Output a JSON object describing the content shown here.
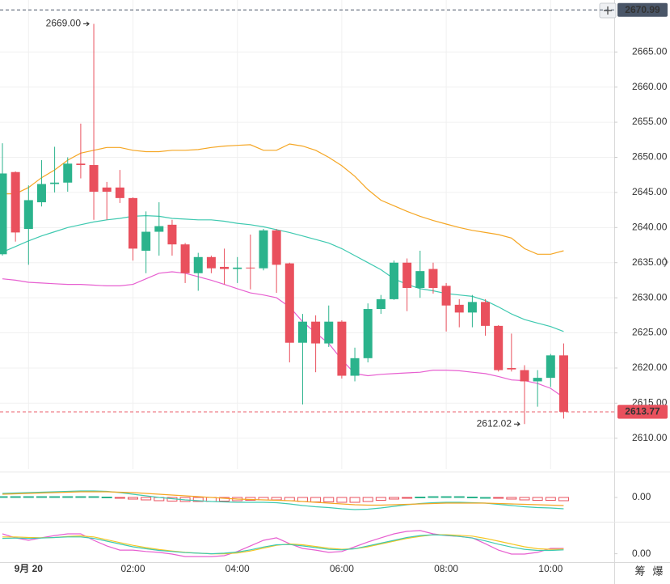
{
  "chart_data": [
    {
      "type": "candlestick",
      "categories": [
        null,
        null,
        "9月 20",
        null,
        null,
        null,
        null,
        null,
        null,
        null,
        "02:00",
        null,
        null,
        null,
        null,
        null,
        null,
        null,
        "04:00",
        null,
        null,
        null,
        null,
        null,
        null,
        null,
        "06:00",
        null,
        null,
        null,
        null,
        null,
        null,
        null,
        "08:00",
        null,
        null,
        null,
        null,
        null,
        null,
        null,
        "10:00",
        null
      ],
      "open": [
        2636.2,
        2647.9,
        2639.8,
        2643.6,
        2646.2,
        2646.4,
        2649.1,
        2648.9,
        2645.7,
        2645.7,
        2644.2,
        2636.7,
        2639.4,
        2640.4,
        2637.6,
        2633.5,
        2635.8,
        2634.4,
        2634.1,
        2634.3,
        2634.2,
        2639.6,
        2634.9,
        2623.6,
        2626.6,
        2623.5,
        2626.6,
        2618.9,
        2621.4,
        2628.4,
        2629.8,
        2635.0,
        2631.4,
        2634.1,
        2631.7,
        2629.0,
        2627.9,
        2629.4,
        2626.0,
        2620.0,
        2619.7,
        2618.1,
        2618.6,
        2621.8
      ],
      "high": [
        2652.0,
        2648.0,
        2646.0,
        2649.6,
        2651.5,
        2650.0,
        2654.8,
        2669.0,
        2646.5,
        2648.2,
        2644.3,
        2642.3,
        2643.6,
        2641.1,
        2637.8,
        2636.4,
        2636.0,
        2637.0,
        2635.8,
        2639.0,
        2639.8,
        2639.8,
        2635.0,
        2627.7,
        2627.5,
        2628.9,
        2626.8,
        2622.9,
        2629.2,
        2630.4,
        2635.3,
        2635.6,
        2636.7,
        2635.0,
        2632.1,
        2629.8,
        2630.4,
        2629.8,
        2626.1,
        2624.9,
        2620.4,
        2619.7,
        2622.0,
        2623.5
      ],
      "low": [
        2636.0,
        2638.0,
        2634.7,
        2643.0,
        2645.0,
        2645.1,
        2647.0,
        2641.1,
        2641.1,
        2643.5,
        2635.3,
        2633.5,
        2636.0,
        2636.0,
        2632.1,
        2631.0,
        2633.5,
        2631.9,
        2632.1,
        2631.2,
        2633.9,
        2630.7,
        2620.8,
        2614.8,
        2619.4,
        2623.0,
        2618.5,
        2618.1,
        2620.8,
        2627.7,
        2629.7,
        2628.1,
        2630.0,
        2630.6,
        2625.2,
        2625.8,
        2625.8,
        2624.6,
        2619.5,
        2619.5,
        2612.02,
        2614.5,
        2617.3,
        2612.8
      ],
      "close": [
        2647.7,
        2639.3,
        2643.9,
        2646.2,
        2646.4,
        2649.1,
        2648.9,
        2645.1,
        2645.1,
        2644.2,
        2637.0,
        2639.4,
        2640.2,
        2637.6,
        2633.5,
        2635.8,
        2634.2,
        2634.1,
        2634.3,
        2634.2,
        2639.6,
        2634.7,
        2623.6,
        2626.6,
        2623.5,
        2626.6,
        2618.9,
        2621.4,
        2628.4,
        2629.8,
        2635.0,
        2631.4,
        2633.8,
        2631.4,
        2628.9,
        2627.9,
        2629.4,
        2626.0,
        2619.7,
        2619.8,
        2618.1,
        2618.6,
        2621.8,
        2613.77
      ],
      "up_color": "#2bb38c",
      "down_color": "#e9505d",
      "overlays": [
        {
          "color": "#f5a623",
          "values": [
            2644.8,
            2644.8,
            2645.7,
            2647.1,
            2648.2,
            2649.6,
            2650.6,
            2651.0,
            2651.4,
            2651.4,
            2651.0,
            2650.8,
            2650.8,
            2651.0,
            2651.0,
            2651.1,
            2651.4,
            2651.6,
            2651.7,
            2651.8,
            2651.0,
            2651.0,
            2651.9,
            2651.6,
            2651.0,
            2650.0,
            2648.8,
            2647.3,
            2645.4,
            2643.9,
            2643.1,
            2642.3,
            2641.6,
            2641.0,
            2640.5,
            2640.0,
            2639.6,
            2639.3,
            2639.0,
            2638.5,
            2637.0,
            2636.2,
            2636.2,
            2636.7
          ]
        },
        {
          "color": "#3ec9b0",
          "values": [
            2636.5,
            2637.3,
            2638.1,
            2638.8,
            2639.4,
            2640.0,
            2640.4,
            2640.8,
            2641.1,
            2641.3,
            2641.6,
            2641.7,
            2641.6,
            2641.3,
            2641.2,
            2641.1,
            2641.1,
            2640.9,
            2640.6,
            2640.4,
            2640.1,
            2639.7,
            2639.3,
            2638.8,
            2638.3,
            2637.8,
            2637.0,
            2636.0,
            2635.0,
            2634.0,
            2632.7,
            2631.9,
            2631.3,
            2631.0,
            2630.6,
            2630.4,
            2630.2,
            2629.6,
            2628.7,
            2627.7,
            2626.9,
            2626.4,
            2625.9,
            2625.2
          ]
        },
        {
          "color": "#e75fd0",
          "values": [
            2632.7,
            2632.5,
            2632.2,
            2632.1,
            2632.0,
            2631.9,
            2631.9,
            2631.8,
            2631.7,
            2631.7,
            2631.9,
            2632.7,
            2633.5,
            2633.7,
            2633.5,
            2633.0,
            2632.5,
            2631.9,
            2631.3,
            2630.7,
            2630.4,
            2630.0,
            2628.7,
            2626.6,
            2625.0,
            2623.5,
            2621.2,
            2619.2,
            2618.9,
            2619.1,
            2619.2,
            2619.3,
            2619.4,
            2619.7,
            2619.7,
            2619.6,
            2619.4,
            2619.2,
            2618.8,
            2618.3,
            2618.2,
            2617.8,
            2617.1,
            2615.8
          ]
        }
      ],
      "ylim": [
        2605.6,
        2672.4
      ],
      "yticks": [
        {
          "value": 2610,
          "label": "2610.00"
        },
        {
          "value": 2615,
          "label": "2615.00"
        },
        {
          "value": 2620,
          "label": "2620.00"
        },
        {
          "value": 2625,
          "label": "2625.00"
        },
        {
          "value": 2630,
          "label": "2630.00"
        },
        {
          "value": 2635,
          "label": "2635.00"
        },
        {
          "value": 2640,
          "label": "2640.00"
        },
        {
          "value": 2645,
          "label": "2645.00"
        },
        {
          "value": 2650,
          "label": "2650.00"
        },
        {
          "value": 2655,
          "label": "2655.00"
        },
        {
          "value": 2660,
          "label": "2660.00"
        },
        {
          "value": 2665,
          "label": "2665.00"
        }
      ],
      "grid": true,
      "annotations": [
        {
          "value": 2669.0,
          "label": "2669.00",
          "at": "high"
        },
        {
          "value": 2612.02,
          "label": "2612.02",
          "at": "low"
        }
      ],
      "price_lines": [
        {
          "value": 2670.99,
          "label": "2670.99",
          "color": "#4a5668"
        },
        {
          "value": 2613.77,
          "label": "2613.77",
          "color": "#e9505d"
        }
      ]
    },
    {
      "type": "macd",
      "histogram": [
        0.2,
        0.2,
        0.2,
        0.2,
        0.2,
        0.2,
        0.2,
        0.2,
        0.1,
        -0.1,
        -0.4,
        -0.6,
        -0.8,
        -0.9,
        -1.0,
        -1.0,
        -1.0,
        -0.9,
        -0.8,
        -0.7,
        -0.6,
        -0.6,
        -0.8,
        -1.0,
        -1.1,
        -1.1,
        -1.2,
        -1.2,
        -1.0,
        -0.7,
        -0.4,
        -0.1,
        0.1,
        0.2,
        0.2,
        0.2,
        0.1,
        0,
        -0.2,
        -0.4,
        -0.6,
        -0.7,
        -0.7,
        -0.8
      ],
      "up_color": "#2bb38c",
      "down_color": "#e9505d",
      "series": [
        {
          "color": "#3ec9b0",
          "values": [
            1.0,
            1.1,
            1.2,
            1.3,
            1.4,
            1.5,
            1.6,
            1.6,
            1.5,
            1.2,
            0.8,
            0.4,
            0,
            -0.3,
            -0.6,
            -0.8,
            -1.0,
            -1.1,
            -1.2,
            -1.2,
            -1.2,
            -1.3,
            -1.6,
            -2.0,
            -2.3,
            -2.5,
            -2.8,
            -3.0,
            -2.9,
            -2.6,
            -2.2,
            -1.8,
            -1.5,
            -1.3,
            -1.2,
            -1.2,
            -1.3,
            -1.4,
            -1.7,
            -2.0,
            -2.3,
            -2.5,
            -2.6,
            -2.8
          ]
        },
        {
          "color": "#f5a623",
          "values": [
            0.8,
            0.9,
            1.0,
            1.1,
            1.2,
            1.3,
            1.4,
            1.4,
            1.4,
            1.3,
            1.2,
            1.0,
            0.8,
            0.6,
            0.4,
            0.2,
            0,
            -0.2,
            -0.4,
            -0.5,
            -0.6,
            -0.7,
            -0.8,
            -1.0,
            -1.2,
            -1.4,
            -1.6,
            -1.8,
            -1.9,
            -1.9,
            -1.8,
            -1.7,
            -1.6,
            -1.5,
            -1.4,
            -1.4,
            -1.4,
            -1.4,
            -1.5,
            -1.6,
            -1.7,
            -1.8,
            -1.9,
            -2.0
          ]
        }
      ],
      "ylim": [
        -5,
        5
      ],
      "yticks": [
        {
          "value": 0,
          "label": "0.00"
        }
      ]
    },
    {
      "type": "line",
      "series": [
        {
          "color": "#e75fd0",
          "values": [
            71,
            57,
            48,
            57,
            65,
            71,
            71,
            48,
            28,
            13,
            13,
            8,
            5,
            -1,
            -10,
            -10,
            -10,
            -7,
            8,
            28,
            48,
            57,
            36,
            19,
            13,
            5,
            8,
            25,
            42,
            57,
            71,
            80,
            83,
            71,
            65,
            62,
            57,
            36,
            13,
            -1,
            -1,
            5,
            19,
            19
          ]
        },
        {
          "color": "#f5c623",
          "values": [
            60,
            60,
            58,
            57,
            58,
            62,
            64,
            60,
            50,
            40,
            30,
            22,
            15,
            10,
            5,
            2,
            0,
            0,
            3,
            10,
            20,
            30,
            35,
            32,
            26,
            20,
            16,
            18,
            25,
            35,
            45,
            55,
            62,
            68,
            68,
            66,
            63,
            55,
            45,
            35,
            25,
            18,
            16,
            17
          ]
        },
        {
          "color": "#3ec9b0",
          "values": [
            55,
            56,
            55,
            56,
            58,
            60,
            60,
            55,
            45,
            35,
            25,
            18,
            12,
            8,
            4,
            2,
            0,
            2,
            6,
            14,
            24,
            32,
            33,
            28,
            22,
            16,
            14,
            18,
            28,
            38,
            48,
            58,
            65,
            68,
            66,
            62,
            56,
            46,
            34,
            24,
            16,
            12,
            12,
            14
          ]
        }
      ],
      "ylim": [
        -30,
        100
      ],
      "yticks": [
        {
          "value": 0,
          "label": "0.00"
        }
      ]
    }
  ],
  "toolbar": [
    "筹",
    "爆"
  ]
}
